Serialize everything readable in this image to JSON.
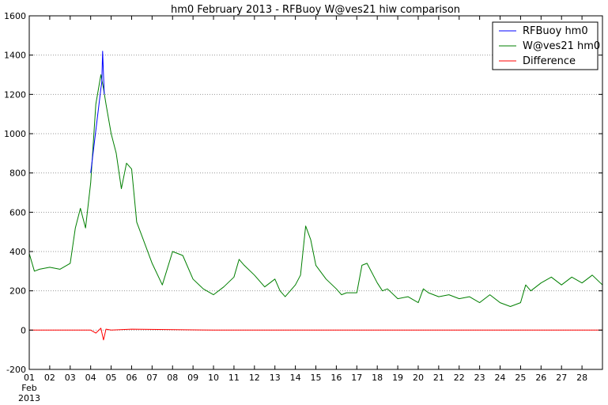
{
  "chart_data": {
    "type": "line",
    "title": "hm0 February 2013 - RFBuoy W@ves21 hiw comparison",
    "xlabel": "",
    "ylabel": "",
    "x_axis": {
      "type": "date",
      "range": [
        "2013-02-01",
        "2013-02-29"
      ],
      "major_ticks": [
        "01",
        "02",
        "03",
        "04",
        "05",
        "06",
        "07",
        "08",
        "09",
        "10",
        "11",
        "12",
        "13",
        "14",
        "15",
        "16",
        "17",
        "18",
        "19",
        "20",
        "21",
        "22",
        "23",
        "24",
        "25",
        "26",
        "27",
        "28"
      ],
      "first_tick_sublabels": [
        "Feb",
        "2013"
      ]
    },
    "y_axis": {
      "ylim": [
        -200,
        1600
      ],
      "ticks": [
        -200,
        0,
        200,
        400,
        600,
        800,
        1000,
        1200,
        1400,
        1600
      ]
    },
    "grid": "horizontal dotted",
    "legend": {
      "location": "top-right"
    },
    "series": [
      {
        "name": "RFBuoy hm0",
        "color": "#0000ff",
        "x": [
          "2013-02-04",
          "2013-02-04 12:00",
          "2013-02-04 13:00",
          "2013-02-04 14:00",
          "2013-02-04 15:00",
          "2013-02-04 16:00"
        ],
        "values": [
          800,
          1230,
          1260,
          1420,
          1300,
          1200
        ]
      },
      {
        "name": "W@ves21 hm0",
        "color": "#007f00",
        "x": [
          "2013-02-01",
          "2013-02-01 06:00",
          "2013-02-01 12:00",
          "2013-02-02",
          "2013-02-02 12:00",
          "2013-02-03",
          "2013-02-03 06:00",
          "2013-02-03 12:00",
          "2013-02-03 18:00",
          "2013-02-04",
          "2013-02-04 06:00",
          "2013-02-04 12:00",
          "2013-02-04 15:00",
          "2013-02-04 18:00",
          "2013-02-05",
          "2013-02-05 06:00",
          "2013-02-05 12:00",
          "2013-02-05 18:00",
          "2013-02-06",
          "2013-02-06 06:00",
          "2013-02-06 12:00",
          "2013-02-07",
          "2013-02-07 12:00",
          "2013-02-08",
          "2013-02-08 12:00",
          "2013-02-09",
          "2013-02-09 12:00",
          "2013-02-10",
          "2013-02-10 12:00",
          "2013-02-11",
          "2013-02-11 06:00",
          "2013-02-11 12:00",
          "2013-02-12",
          "2013-02-12 12:00",
          "2013-02-13",
          "2013-02-13 06:00",
          "2013-02-13 12:00",
          "2013-02-14",
          "2013-02-14 06:00",
          "2013-02-14 12:00",
          "2013-02-14 18:00",
          "2013-02-15",
          "2013-02-15 12:00",
          "2013-02-16",
          "2013-02-16 06:00",
          "2013-02-16 12:00",
          "2013-02-17",
          "2013-02-17 06:00",
          "2013-02-17 12:00",
          "2013-02-18",
          "2013-02-18 06:00",
          "2013-02-18 12:00",
          "2013-02-19",
          "2013-02-19 12:00",
          "2013-02-20",
          "2013-02-20 06:00",
          "2013-02-20 12:00",
          "2013-02-21",
          "2013-02-21 12:00",
          "2013-02-22",
          "2013-02-22 12:00",
          "2013-02-23",
          "2013-02-23 12:00",
          "2013-02-24",
          "2013-02-24 12:00",
          "2013-02-25",
          "2013-02-25 06:00",
          "2013-02-25 12:00",
          "2013-02-26",
          "2013-02-26 12:00",
          "2013-02-27",
          "2013-02-27 12:00",
          "2013-02-28",
          "2013-02-28 06:00",
          "2013-02-28 12:00",
          "2013-02-29"
        ],
        "values": [
          390,
          300,
          310,
          320,
          310,
          340,
          520,
          620,
          520,
          750,
          1150,
          1300,
          1230,
          1150,
          1000,
          900,
          720,
          850,
          820,
          550,
          480,
          340,
          230,
          400,
          380,
          260,
          210,
          180,
          220,
          270,
          360,
          330,
          280,
          220,
          260,
          200,
          170,
          230,
          280,
          530,
          460,
          330,
          260,
          210,
          180,
          190,
          190,
          330,
          340,
          240,
          200,
          210,
          160,
          170,
          140,
          210,
          190,
          170,
          180,
          160,
          170,
          140,
          180,
          140,
          120,
          140,
          230,
          200,
          240,
          270,
          230,
          270,
          240,
          260,
          280,
          230
        ]
      },
      {
        "name": "Difference",
        "color": "#ff0000",
        "x": [
          "2013-02-01",
          "2013-02-03",
          "2013-02-04",
          "2013-02-04 06:00",
          "2013-02-04 12:00",
          "2013-02-04 15:00",
          "2013-02-04 18:00",
          "2013-02-05",
          "2013-02-06",
          "2013-02-10",
          "2013-02-15",
          "2013-02-20",
          "2013-02-25",
          "2013-02-29"
        ],
        "values": [
          0,
          0,
          0,
          -15,
          10,
          -50,
          5,
          0,
          5,
          0,
          0,
          0,
          0,
          0
        ]
      }
    ]
  }
}
